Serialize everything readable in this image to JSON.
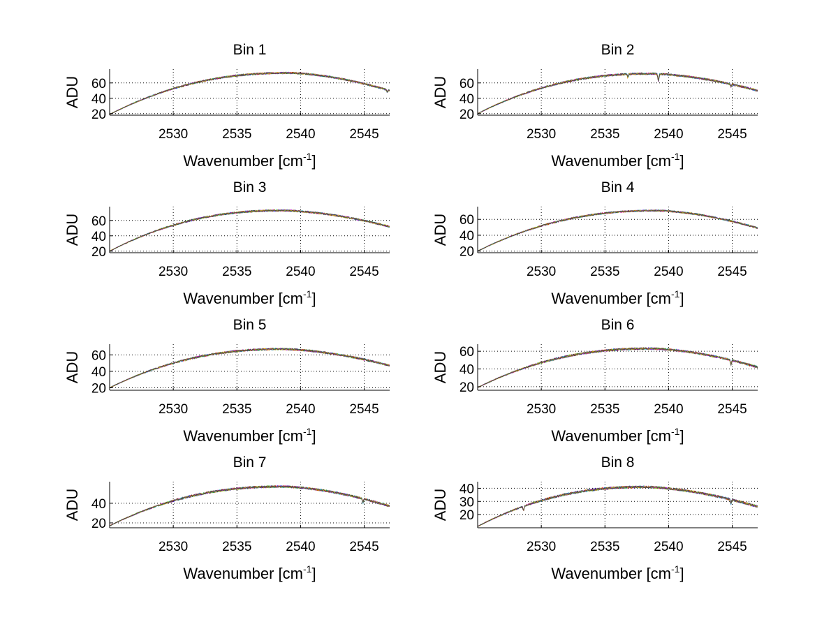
{
  "chart_data": {
    "type": "line",
    "layout": "grid-4x2",
    "colors": {
      "series": [
        "#0000ff",
        "#008000",
        "#ff0000",
        "#00bfbf",
        "#bf00bf",
        "#bfbf00",
        "#404040"
      ],
      "axis": "#000000",
      "grid": "#000000",
      "background": "#ffffff"
    },
    "xlabel": {
      "base": "Wavenumber [cm",
      "superscript": "-1",
      "close": "]"
    },
    "xlim": [
      2525,
      2547
    ],
    "xticks": [
      2530,
      2535,
      2540,
      2545
    ],
    "grid": true,
    "subplots": [
      {
        "title": "Bin 1",
        "ylabel": "ADU",
        "ylim": [
          18,
          78
        ],
        "yticks": [
          20,
          40,
          60
        ],
        "ymin": 19,
        "ymax": 73,
        "peak_x": 2539.0,
        "end": 50,
        "noise": 1.1,
        "dips": [
          {
            "x": 2546.8,
            "depth": 3
          }
        ]
      },
      {
        "title": "Bin 2",
        "ylabel": "ADU",
        "ylim": [
          18,
          78
        ],
        "yticks": [
          20,
          40,
          60
        ],
        "ymin": 20,
        "ymax": 72,
        "peak_x": 2538.5,
        "end": 50,
        "noise": 1.2,
        "dips": [
          {
            "x": 2539.2,
            "depth": 9
          },
          {
            "x": 2536.8,
            "depth": 4
          },
          {
            "x": 2544.9,
            "depth": 3
          }
        ]
      },
      {
        "title": "Bin 3",
        "ylabel": "ADU",
        "ylim": [
          18,
          78
        ],
        "yticks": [
          20,
          40,
          60
        ],
        "ymin": 20,
        "ymax": 73,
        "peak_x": 2538.5,
        "end": 52,
        "noise": 1.1,
        "dips": []
      },
      {
        "title": "Bin 4",
        "ylabel": "ADU",
        "ylim": [
          18,
          76
        ],
        "yticks": [
          20,
          40,
          60
        ],
        "ymin": 20,
        "ymax": 71,
        "peak_x": 2539.0,
        "end": 49,
        "noise": 1.0,
        "dips": []
      },
      {
        "title": "Bin 5",
        "ylabel": "ADU",
        "ylim": [
          17,
          73
        ],
        "yticks": [
          20,
          40,
          60
        ],
        "ymin": 20,
        "ymax": 67,
        "peak_x": 2538.5,
        "end": 47,
        "noise": 1.1,
        "dips": []
      },
      {
        "title": "Bin 6",
        "ylabel": "ADU",
        "ylim": [
          16,
          68
        ],
        "yticks": [
          20,
          40,
          60
        ],
        "ymin": 19,
        "ymax": 63,
        "peak_x": 2538.5,
        "end": 42,
        "noise": 1.1,
        "dips": [
          {
            "x": 2544.9,
            "depth": 5
          }
        ]
      },
      {
        "title": "Bin 7",
        "ylabel": "ADU",
        "ylim": [
          15,
          62
        ],
        "yticks": [
          20,
          40
        ],
        "ymin": 17,
        "ymax": 57,
        "peak_x": 2538.5,
        "end": 37,
        "noise": 1.0,
        "dips": [
          {
            "x": 2544.9,
            "depth": 4
          }
        ]
      },
      {
        "title": "Bin 8",
        "ylabel": "ADU",
        "ylim": [
          10,
          45
        ],
        "yticks": [
          20,
          30,
          40
        ],
        "ymin": 11,
        "ymax": 41,
        "peak_x": 2538.0,
        "end": 26,
        "noise": 0.8,
        "dips": [
          {
            "x": 2528.6,
            "depth": 3
          },
          {
            "x": 2544.9,
            "depth": 3
          }
        ]
      }
    ]
  }
}
